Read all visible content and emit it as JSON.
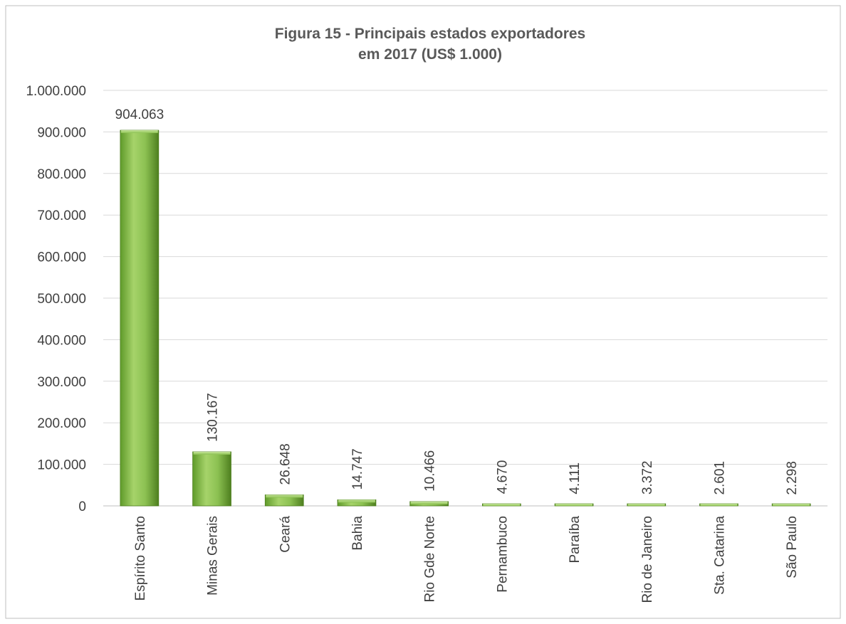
{
  "chart_data": {
    "type": "bar",
    "title_lines": [
      "Figura 15 - Principais estados exportadores",
      "em 2017 (US$ 1.000)"
    ],
    "xlabel": "",
    "ylabel": "",
    "ylim": [
      0,
      1000000
    ],
    "yticks": [
      0,
      100000,
      200000,
      300000,
      400000,
      500000,
      600000,
      700000,
      800000,
      900000,
      1000000
    ],
    "ytick_labels": [
      "0",
      "100.000",
      "200.000",
      "300.000",
      "400.000",
      "500.000",
      "600.000",
      "700.000",
      "800.000",
      "900.000",
      "1.000.000"
    ],
    "categories": [
      "Espírito Santo",
      "Minas Gerais",
      "Ceará",
      "Bahia",
      "Rio Gde Norte",
      "Pernambuco",
      "Paraíba",
      "Rio de Janeiro",
      "Sta. Catarina",
      "São Paulo"
    ],
    "values": [
      904063,
      130167,
      26648,
      14747,
      10466,
      4670,
      4111,
      3372,
      2601,
      2298
    ],
    "value_labels": [
      "904.063",
      "130.167",
      "26.648",
      "14.747",
      "10.466",
      "4.670",
      "4.111",
      "3.372",
      "2.601",
      "2.298"
    ],
    "grid": true,
    "legend": "none",
    "colors": {
      "bar_light": "#a9d46f",
      "bar_mid": "#7cb342",
      "bar_dark": "#4e7f1f",
      "grid": "#d9d9d9",
      "text": "#404040",
      "title": "#595959",
      "border": "#bfbfbf"
    }
  }
}
